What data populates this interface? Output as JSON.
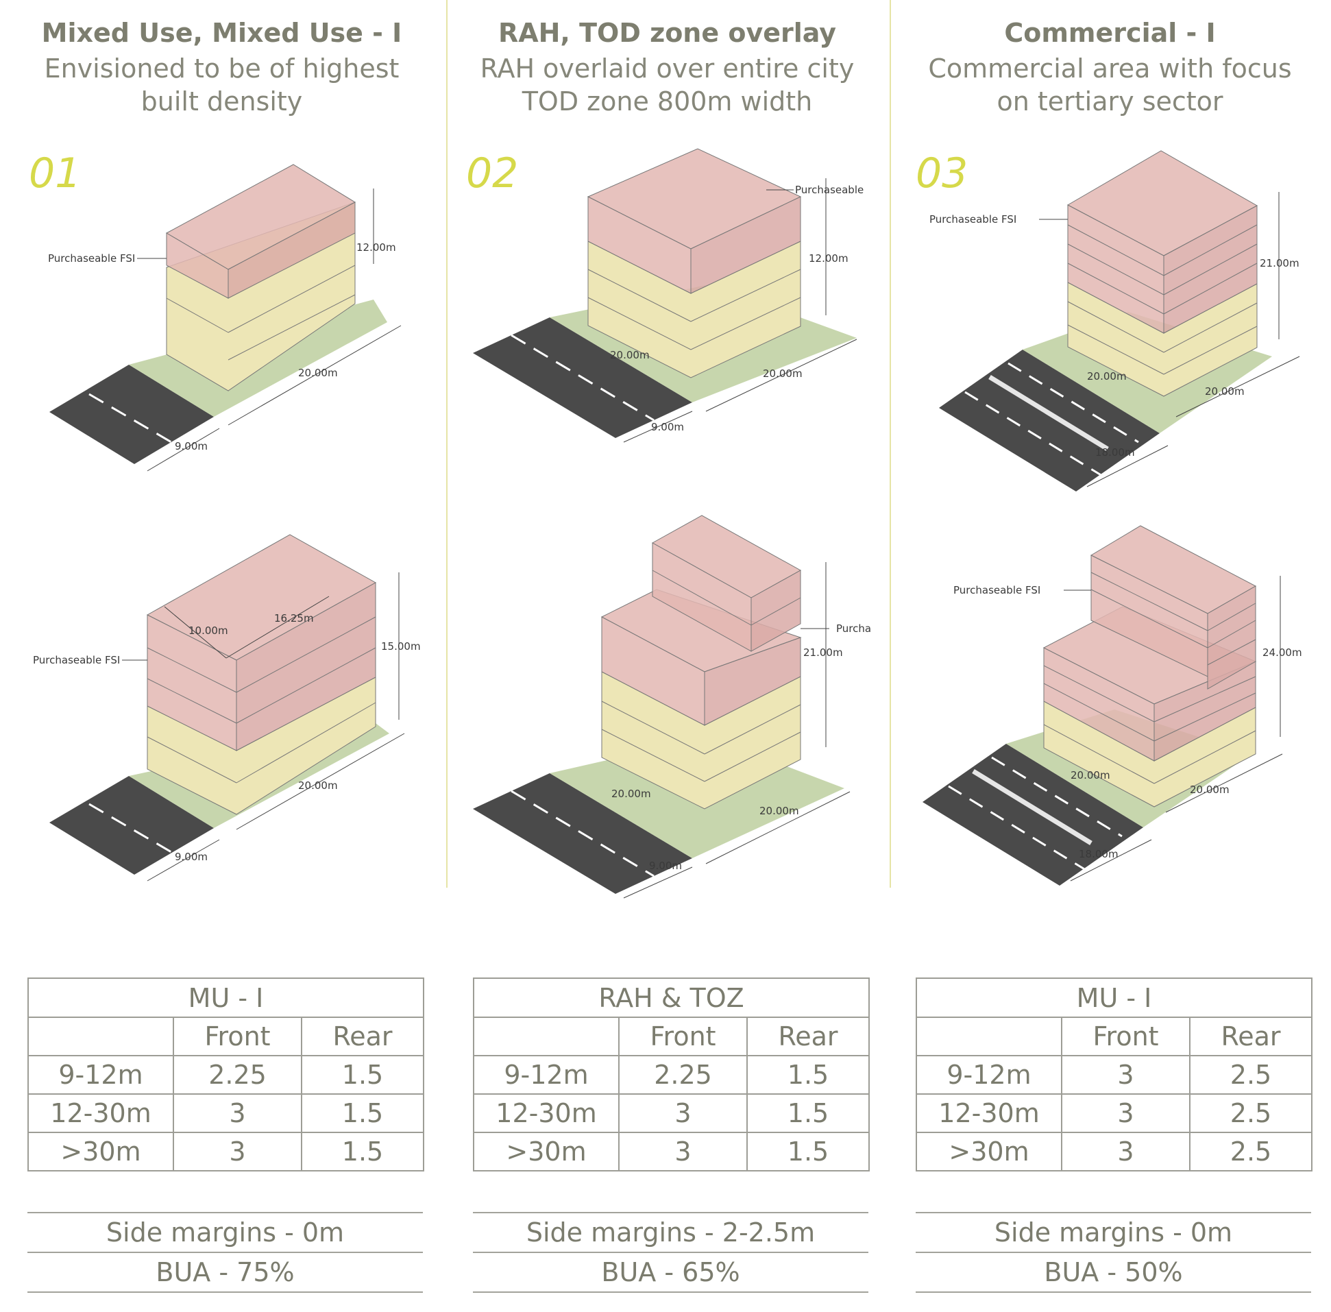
{
  "columns": [
    {
      "title": "Mixed Use, Mixed Use - I",
      "subtitle": "Envisioned to be of highest\nbuilt density",
      "number": "01",
      "diagram_top": {
        "fsi_label": "Purchaseable FSI",
        "height": "12.00m",
        "depth": "20.00m",
        "road": "9.00m"
      },
      "diagram_bottom": {
        "fsi_label": "Purchaseable FSI",
        "height": "15.00m",
        "depth": "20.00m",
        "road": "9.00m",
        "dim_a": "10.00m",
        "dim_b": "16.25m"
      },
      "table": {
        "heading": "MU - I",
        "headers": [
          "",
          "Front",
          "Rear"
        ],
        "rows": [
          [
            "9-12m",
            "2.25",
            "1.5"
          ],
          [
            "12-30m",
            "3",
            "1.5"
          ],
          [
            ">30m",
            "3",
            "1.5"
          ]
        ]
      },
      "side_margins": "Side margins - 0m",
      "bua": "BUA - 75%"
    },
    {
      "title": "RAH, TOD zone overlay",
      "subtitle": "RAH overlaid over entire city\nTOD zone 800m width",
      "number": "02",
      "diagram_top": {
        "fsi_label": "Purchaseable",
        "height": "12.00m",
        "width": "20.00m",
        "depth": "20.00m",
        "road": "9.00m"
      },
      "diagram_bottom": {
        "fsi_label": "Purcha",
        "height": "21.00m",
        "width": "20.00m",
        "depth": "20.00m",
        "road": "9.00m"
      },
      "table": {
        "heading": "RAH & TOZ",
        "headers": [
          "",
          "Front",
          "Rear"
        ],
        "rows": [
          [
            "9-12m",
            "2.25",
            "1.5"
          ],
          [
            "12-30m",
            "3",
            "1.5"
          ],
          [
            ">30m",
            "3",
            "1.5"
          ]
        ]
      },
      "side_margins": "Side margins - 2-2.5m",
      "bua": "BUA - 65%"
    },
    {
      "title": "Commercial - I",
      "subtitle": "Commercial area with focus\non tertiary sector",
      "number": "03",
      "diagram_top": {
        "fsi_label": "Purchaseable FSI",
        "height": "21.00m",
        "width": "20.00m",
        "depth": "20.00m",
        "road": "18.00m"
      },
      "diagram_bottom": {
        "fsi_label": "Purchaseable FSI",
        "height": "24.00m",
        "width": "20.00m",
        "depth": "20.00m",
        "road": "18.00m"
      },
      "table": {
        "heading": "MU - I",
        "headers": [
          "",
          "Front",
          "Rear"
        ],
        "rows": [
          [
            "9-12m",
            "3",
            "2.5"
          ],
          [
            "12-30m",
            "3",
            "2.5"
          ],
          [
            ">30m",
            "3",
            "2.5"
          ]
        ]
      },
      "side_margins": "Side margins - 0m",
      "bua": "BUA - 50%"
    }
  ],
  "colors": {
    "accent_number": "#d6d94a",
    "divider": "#e6e4a6",
    "fsi_volume": "#e3b7b3",
    "base_volume": "#ede6b6",
    "plot": "#c7d6ad",
    "road": "#4a4a4a"
  }
}
